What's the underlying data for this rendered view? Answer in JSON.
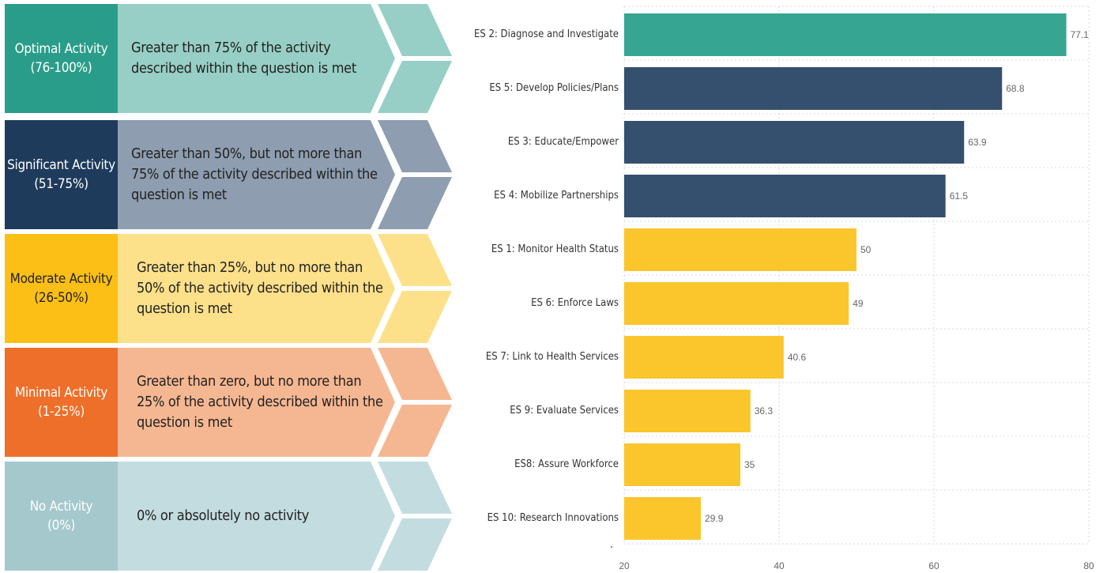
{
  "legend": {
    "rows": [
      {
        "title": "Optimal Activity",
        "range": "(76-100%)",
        "description": "Greater than 75% of the activity described within the question is met",
        "box_color": "#2a9d8a",
        "body_color": "#97cfc6",
        "text_color": "#ffffff"
      },
      {
        "title": "Significant Activity",
        "range": "(51-75%)",
        "description": "Greater than 50%, but not more than 75% of the activity described within the question is met",
        "box_color": "#1f3b5c",
        "body_color": "#8e9db0",
        "text_color": "#ffffff"
      },
      {
        "title": "Moderate Activity",
        "range": "(26-50%)",
        "description": "Greater than 25%, but no more than 50% of the activity described within the question is met",
        "box_color": "#fcbf15",
        "body_color": "#fde08a",
        "text_color": "#222222"
      },
      {
        "title": "Minimal Activity",
        "range": "(1-25%)",
        "description": "Greater than zero, but no more than 25% of the activity described within the question is met",
        "box_color": "#ee6f2a",
        "body_color": "#f5b792",
        "text_color": "#ffffff"
      },
      {
        "title": "No Activity",
        "range": "(0%)",
        "description": "0% or absolutely no activity",
        "box_color": "#a5c8cd",
        "body_color": "#c3dcdf",
        "text_color": "#ffffff"
      }
    ]
  },
  "chart_data": {
    "type": "bar",
    "orientation": "horizontal",
    "categories": [
      "ES 2: Diagnose and Investigate",
      "ES 5: Develop Policies/Plans",
      "ES 3: Educate/Empower",
      "ES 4: Mobilize Partnerships",
      "ES 1: Monitor Health Status",
      "ES 6: Enforce Laws",
      "ES 7: Link to Health Services",
      "ES 9: Evaluate Services",
      "ES8: Assure Workforce",
      "ES 10: Research Innovations"
    ],
    "values": [
      77.1,
      68.8,
      63.9,
      61.5,
      50,
      49,
      40.6,
      36.3,
      35,
      29.9
    ],
    "value_labels": [
      "77.1",
      "68.8",
      "63.9",
      "61.5",
      "50",
      "49",
      "40.6",
      "36.3",
      "35",
      "29.9"
    ],
    "colors": [
      "#36a692",
      "#354f6f",
      "#354f6f",
      "#354f6f",
      "#fbc62c",
      "#fbc62c",
      "#fbc62c",
      "#fbc62c",
      "#fbc62c",
      "#fbc62c"
    ],
    "xlim": [
      20,
      80
    ],
    "xticks": [
      20,
      40,
      60,
      80
    ],
    "grid": true,
    "title": "",
    "xlabel": "",
    "ylabel": ""
  }
}
